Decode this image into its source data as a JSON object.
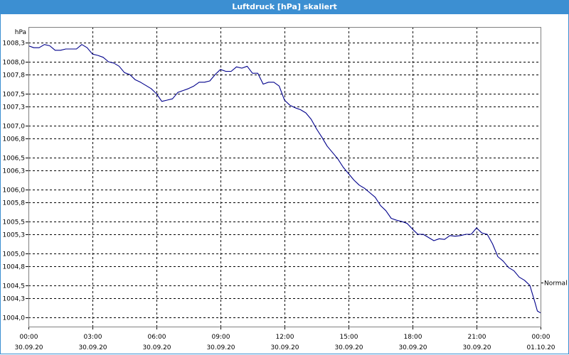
{
  "window": {
    "title": "Luftdruck [hPa] skaliert"
  },
  "chart_data": {
    "type": "line",
    "title": "Luftdruck [hPa] skaliert",
    "ylabel": "hPa",
    "xlabel": "",
    "ylim": [
      1003.95,
      1008.4
    ],
    "yticks": [
      {
        "value": 1008.3,
        "label": "1008,3"
      },
      {
        "value": 1008.0,
        "label": "1008,0"
      },
      {
        "value": 1007.8,
        "label": "1007,8"
      },
      {
        "value": 1007.5,
        "label": "1007,5"
      },
      {
        "value": 1007.3,
        "label": "1007,3"
      },
      {
        "value": 1007.0,
        "label": "1007,0"
      },
      {
        "value": 1006.8,
        "label": "1006,8"
      },
      {
        "value": 1006.5,
        "label": "1006,5"
      },
      {
        "value": 1006.3,
        "label": "1006,3"
      },
      {
        "value": 1006.0,
        "label": "1006,0"
      },
      {
        "value": 1005.8,
        "label": "1005,8"
      },
      {
        "value": 1005.5,
        "label": "1005,5"
      },
      {
        "value": 1005.3,
        "label": "1005,3"
      },
      {
        "value": 1005.0,
        "label": "1005,0"
      },
      {
        "value": 1004.8,
        "label": "1004,8"
      },
      {
        "value": 1004.5,
        "label": "1004,5"
      },
      {
        "value": 1004.3,
        "label": "1004,3"
      },
      {
        "value": 1004.0,
        "label": "1004,0"
      }
    ],
    "xlim": [
      0,
      24
    ],
    "xticks": [
      {
        "hour": 0,
        "time": "00:00",
        "date": "30.09.20"
      },
      {
        "hour": 3,
        "time": "03:00",
        "date": "30.09.20"
      },
      {
        "hour": 6,
        "time": "06:00",
        "date": "30.09.20"
      },
      {
        "hour": 9,
        "time": "09:00",
        "date": "30.09.20"
      },
      {
        "hour": 12,
        "time": "12:00",
        "date": "30.09.20"
      },
      {
        "hour": 15,
        "time": "15:00",
        "date": "30.09.20"
      },
      {
        "hour": 18,
        "time": "18:00",
        "date": "30.09.20"
      },
      {
        "hour": 21,
        "time": "21:00",
        "date": "30.09.20"
      },
      {
        "hour": 24,
        "time": "00:00",
        "date": "01.10.20"
      }
    ],
    "grid": true,
    "series": [
      {
        "color": "#00008b",
        "points": [
          [
            0.0,
            1008.25
          ],
          [
            0.25,
            1008.22
          ],
          [
            0.5,
            1008.22
          ],
          [
            0.75,
            1008.27
          ],
          [
            1.0,
            1008.25
          ],
          [
            1.25,
            1008.18
          ],
          [
            1.5,
            1008.18
          ],
          [
            1.75,
            1008.2
          ],
          [
            2.0,
            1008.2
          ],
          [
            2.25,
            1008.2
          ],
          [
            2.5,
            1008.27
          ],
          [
            2.75,
            1008.22
          ],
          [
            3.0,
            1008.12
          ],
          [
            3.25,
            1008.1
          ],
          [
            3.5,
            1008.07
          ],
          [
            3.75,
            1008.0
          ],
          [
            4.0,
            1007.98
          ],
          [
            4.25,
            1007.93
          ],
          [
            4.5,
            1007.83
          ],
          [
            4.75,
            1007.8
          ],
          [
            5.0,
            1007.72
          ],
          [
            5.25,
            1007.68
          ],
          [
            5.5,
            1007.63
          ],
          [
            5.75,
            1007.58
          ],
          [
            6.0,
            1007.5
          ],
          [
            6.25,
            1007.38
          ],
          [
            6.5,
            1007.4
          ],
          [
            6.75,
            1007.42
          ],
          [
            7.0,
            1007.52
          ],
          [
            7.25,
            1007.55
          ],
          [
            7.5,
            1007.58
          ],
          [
            7.75,
            1007.62
          ],
          [
            8.0,
            1007.68
          ],
          [
            8.25,
            1007.68
          ],
          [
            8.5,
            1007.7
          ],
          [
            8.75,
            1007.8
          ],
          [
            9.0,
            1007.88
          ],
          [
            9.25,
            1007.85
          ],
          [
            9.5,
            1007.85
          ],
          [
            9.75,
            1007.92
          ],
          [
            10.0,
            1007.9
          ],
          [
            10.25,
            1007.93
          ],
          [
            10.5,
            1007.82
          ],
          [
            10.75,
            1007.82
          ],
          [
            11.0,
            1007.65
          ],
          [
            11.25,
            1007.68
          ],
          [
            11.5,
            1007.68
          ],
          [
            11.75,
            1007.62
          ],
          [
            12.0,
            1007.4
          ],
          [
            12.25,
            1007.32
          ],
          [
            12.5,
            1007.28
          ],
          [
            12.75,
            1007.25
          ],
          [
            13.0,
            1007.2
          ],
          [
            13.25,
            1007.1
          ],
          [
            13.5,
            1006.95
          ],
          [
            13.75,
            1006.82
          ],
          [
            14.0,
            1006.68
          ],
          [
            14.25,
            1006.58
          ],
          [
            14.5,
            1006.48
          ],
          [
            14.75,
            1006.35
          ],
          [
            15.0,
            1006.25
          ],
          [
            15.25,
            1006.15
          ],
          [
            15.5,
            1006.07
          ],
          [
            15.75,
            1006.02
          ],
          [
            16.0,
            1005.95
          ],
          [
            16.25,
            1005.88
          ],
          [
            16.5,
            1005.75
          ],
          [
            16.75,
            1005.67
          ],
          [
            17.0,
            1005.55
          ],
          [
            17.25,
            1005.52
          ],
          [
            17.5,
            1005.5
          ],
          [
            17.75,
            1005.47
          ],
          [
            18.0,
            1005.38
          ],
          [
            18.25,
            1005.3
          ],
          [
            18.5,
            1005.3
          ],
          [
            18.75,
            1005.25
          ],
          [
            19.0,
            1005.2
          ],
          [
            19.25,
            1005.23
          ],
          [
            19.5,
            1005.22
          ],
          [
            19.75,
            1005.28
          ],
          [
            20.0,
            1005.27
          ],
          [
            20.25,
            1005.28
          ],
          [
            20.5,
            1005.3
          ],
          [
            20.75,
            1005.3
          ],
          [
            21.0,
            1005.4
          ],
          [
            21.25,
            1005.32
          ],
          [
            21.5,
            1005.3
          ],
          [
            21.75,
            1005.15
          ],
          [
            22.0,
            1004.95
          ],
          [
            22.25,
            1004.88
          ],
          [
            22.5,
            1004.78
          ],
          [
            22.75,
            1004.73
          ],
          [
            23.0,
            1004.63
          ],
          [
            23.25,
            1004.58
          ],
          [
            23.5,
            1004.5
          ],
          [
            23.75,
            1004.22
          ],
          [
            23.85,
            1004.1
          ],
          [
            24.0,
            1004.07
          ]
        ]
      }
    ],
    "reference_lines": [
      {
        "label": "Normal",
        "value": 1004.55
      }
    ]
  }
}
